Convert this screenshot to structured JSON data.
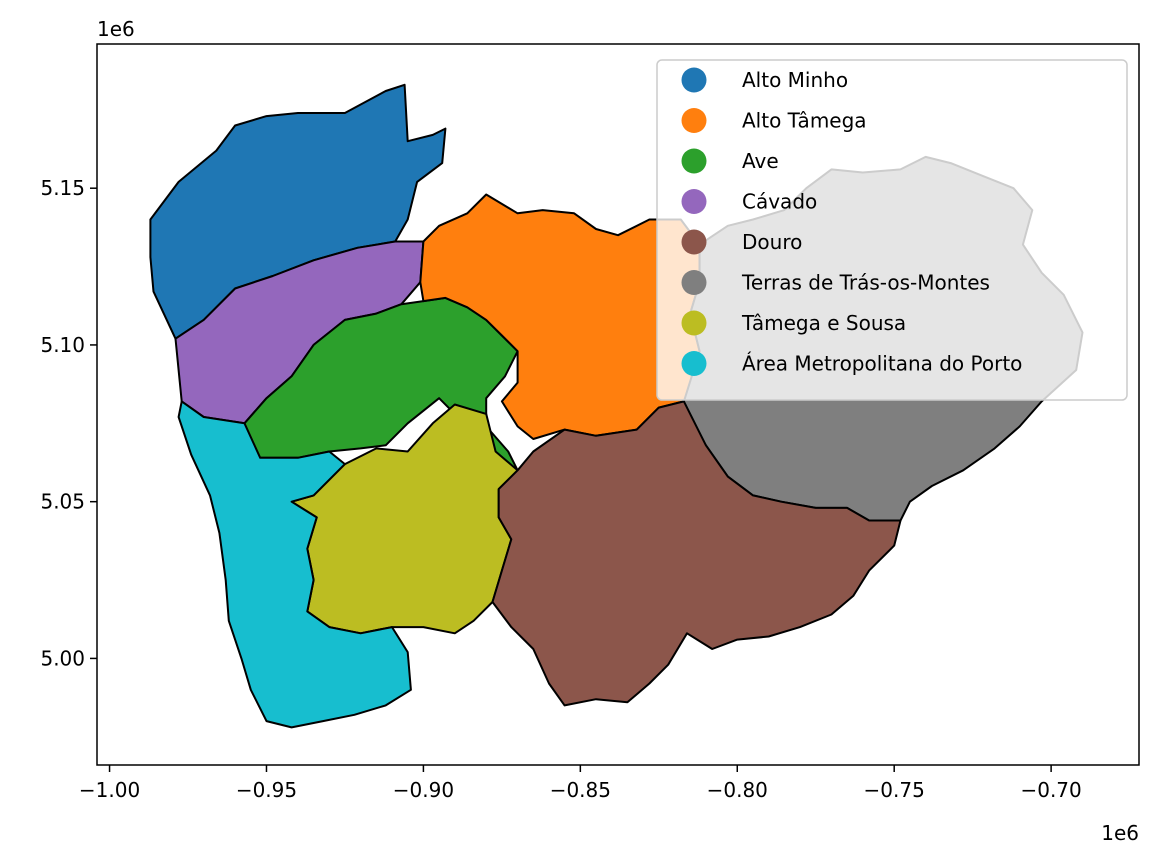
{
  "chart_data": {
    "type": "choropleth-map",
    "title": "",
    "xlabel": "",
    "ylabel": "",
    "x_multiplier": "1e6",
    "y_multiplier": "1e6",
    "xlim": [
      -1.004,
      -0.672
    ],
    "ylim": [
      4.966,
      5.196
    ],
    "x_ticks": [
      {
        "value": -1.0,
        "label": "−1.00"
      },
      {
        "value": -0.95,
        "label": "−0.95"
      },
      {
        "value": -0.9,
        "label": "−0.90"
      },
      {
        "value": -0.85,
        "label": "−0.85"
      },
      {
        "value": -0.8,
        "label": "−0.80"
      },
      {
        "value": -0.75,
        "label": "−0.75"
      },
      {
        "value": -0.7,
        "label": "−0.70"
      }
    ],
    "y_ticks": [
      {
        "value": 5.0,
        "label": "5.00"
      },
      {
        "value": 5.05,
        "label": "5.05"
      },
      {
        "value": 5.1,
        "label": "5.10"
      },
      {
        "value": 5.15,
        "label": "5.15"
      }
    ],
    "legend_position": "top-right",
    "legend": [
      {
        "label": "Alto Minho",
        "color": "#1f77b4"
      },
      {
        "label": "Alto Tâmega",
        "color": "#ff7f0e"
      },
      {
        "label": "Ave",
        "color": "#2ca02c"
      },
      {
        "label": "Cávado",
        "color": "#9467bd"
      },
      {
        "label": "Douro",
        "color": "#8c564b"
      },
      {
        "label": "Terras de Trás-os-Montes",
        "color": "#7f7f7f"
      },
      {
        "label": "Tâmega e Sousa",
        "color": "#bcbd22"
      },
      {
        "label": "Área Metropolitana do Porto",
        "color": "#17becf"
      }
    ],
    "regions": [
      {
        "name": "Alto Minho",
        "color": "#1f77b4",
        "outline": [
          [
            -0.987,
            5.14
          ],
          [
            -0.978,
            5.152
          ],
          [
            -0.966,
            5.162
          ],
          [
            -0.96,
            5.17
          ],
          [
            -0.95,
            5.173
          ],
          [
            -0.94,
            5.174
          ],
          [
            -0.925,
            5.174
          ],
          [
            -0.912,
            5.181
          ],
          [
            -0.906,
            5.183
          ],
          [
            -0.905,
            5.165
          ],
          [
            -0.897,
            5.167
          ],
          [
            -0.893,
            5.169
          ],
          [
            -0.894,
            5.158
          ],
          [
            -0.902,
            5.152
          ],
          [
            -0.905,
            5.14
          ],
          [
            -0.909,
            5.133
          ],
          [
            -0.921,
            5.131
          ],
          [
            -0.935,
            5.127
          ],
          [
            -0.948,
            5.122
          ],
          [
            -0.96,
            5.118
          ],
          [
            -0.97,
            5.108
          ],
          [
            -0.979,
            5.102
          ],
          [
            -0.986,
            5.117
          ],
          [
            -0.987,
            5.128
          ]
        ]
      },
      {
        "name": "Cávado",
        "color": "#9467bd",
        "outline": [
          [
            -0.979,
            5.102
          ],
          [
            -0.97,
            5.108
          ],
          [
            -0.96,
            5.118
          ],
          [
            -0.948,
            5.122
          ],
          [
            -0.935,
            5.127
          ],
          [
            -0.921,
            5.131
          ],
          [
            -0.909,
            5.133
          ],
          [
            -0.9,
            5.133
          ],
          [
            -0.901,
            5.12
          ],
          [
            -0.907,
            5.113
          ],
          [
            -0.915,
            5.11
          ],
          [
            -0.925,
            5.108
          ],
          [
            -0.935,
            5.1
          ],
          [
            -0.942,
            5.09
          ],
          [
            -0.95,
            5.083
          ],
          [
            -0.957,
            5.075
          ],
          [
            -0.97,
            5.077
          ],
          [
            -0.977,
            5.082
          ]
        ]
      },
      {
        "name": "Ave",
        "color": "#2ca02c",
        "outline": [
          [
            -0.957,
            5.075
          ],
          [
            -0.95,
            5.083
          ],
          [
            -0.942,
            5.09
          ],
          [
            -0.935,
            5.1
          ],
          [
            -0.925,
            5.108
          ],
          [
            -0.915,
            5.11
          ],
          [
            -0.907,
            5.113
          ],
          [
            -0.9,
            5.114
          ],
          [
            -0.893,
            5.115
          ],
          [
            -0.886,
            5.112
          ],
          [
            -0.88,
            5.108
          ],
          [
            -0.875,
            5.103
          ],
          [
            -0.87,
            5.098
          ],
          [
            -0.874,
            5.09
          ],
          [
            -0.88,
            5.083
          ],
          [
            -0.88,
            5.074
          ],
          [
            -0.873,
            5.066
          ],
          [
            -0.87,
            5.06
          ],
          [
            -0.876,
            5.057
          ],
          [
            -0.88,
            5.062
          ],
          [
            -0.885,
            5.068
          ],
          [
            -0.89,
            5.078
          ],
          [
            -0.895,
            5.083
          ],
          [
            -0.905,
            5.075
          ],
          [
            -0.912,
            5.068
          ],
          [
            -0.92,
            5.067
          ],
          [
            -0.93,
            5.066
          ],
          [
            -0.94,
            5.064
          ],
          [
            -0.952,
            5.064
          ],
          [
            -0.958,
            5.07
          ]
        ]
      },
      {
        "name": "Alto Tâmega",
        "color": "#ff7f0e",
        "outline": [
          [
            -0.9,
            5.133
          ],
          [
            -0.895,
            5.138
          ],
          [
            -0.886,
            5.142
          ],
          [
            -0.88,
            5.148
          ],
          [
            -0.87,
            5.142
          ],
          [
            -0.862,
            5.143
          ],
          [
            -0.852,
            5.142
          ],
          [
            -0.845,
            5.137
          ],
          [
            -0.838,
            5.135
          ],
          [
            -0.828,
            5.14
          ],
          [
            -0.818,
            5.14
          ],
          [
            -0.812,
            5.132
          ],
          [
            -0.812,
            5.12
          ],
          [
            -0.815,
            5.11
          ],
          [
            -0.812,
            5.098
          ],
          [
            -0.812,
            5.082
          ],
          [
            -0.817,
            5.082
          ],
          [
            -0.825,
            5.08
          ],
          [
            -0.832,
            5.073
          ],
          [
            -0.845,
            5.071
          ],
          [
            -0.855,
            5.073
          ],
          [
            -0.865,
            5.07
          ],
          [
            -0.87,
            5.074
          ],
          [
            -0.875,
            5.082
          ],
          [
            -0.87,
            5.088
          ],
          [
            -0.87,
            5.098
          ],
          [
            -0.875,
            5.103
          ],
          [
            -0.88,
            5.108
          ],
          [
            -0.886,
            5.112
          ],
          [
            -0.893,
            5.115
          ],
          [
            -0.9,
            5.114
          ],
          [
            -0.901,
            5.12
          ]
        ]
      },
      {
        "name": "Terras de Trás-os-Montes",
        "color": "#7f7f7f",
        "outline": [
          [
            -0.817,
            5.082
          ],
          [
            -0.812,
            5.098
          ],
          [
            -0.815,
            5.11
          ],
          [
            -0.812,
            5.12
          ],
          [
            -0.812,
            5.132
          ],
          [
            -0.803,
            5.138
          ],
          [
            -0.795,
            5.14
          ],
          [
            -0.785,
            5.143
          ],
          [
            -0.778,
            5.15
          ],
          [
            -0.77,
            5.156
          ],
          [
            -0.76,
            5.155
          ],
          [
            -0.748,
            5.156
          ],
          [
            -0.74,
            5.16
          ],
          [
            -0.732,
            5.158
          ],
          [
            -0.722,
            5.154
          ],
          [
            -0.712,
            5.15
          ],
          [
            -0.706,
            5.143
          ],
          [
            -0.709,
            5.132
          ],
          [
            -0.703,
            5.123
          ],
          [
            -0.696,
            5.116
          ],
          [
            -0.69,
            5.104
          ],
          [
            -0.692,
            5.092
          ],
          [
            -0.703,
            5.082
          ],
          [
            -0.71,
            5.074
          ],
          [
            -0.718,
            5.067
          ],
          [
            -0.728,
            5.06
          ],
          [
            -0.738,
            5.055
          ],
          [
            -0.745,
            5.05
          ],
          [
            -0.748,
            5.044
          ],
          [
            -0.758,
            5.044
          ],
          [
            -0.765,
            5.048
          ],
          [
            -0.775,
            5.048
          ],
          [
            -0.786,
            5.05
          ],
          [
            -0.795,
            5.052
          ],
          [
            -0.803,
            5.058
          ],
          [
            -0.81,
            5.068
          ],
          [
            -0.815,
            5.075
          ]
        ]
      },
      {
        "name": "Tâmega e Sousa",
        "color": "#bcbd22",
        "outline": [
          [
            -0.935,
            5.052
          ],
          [
            -0.925,
            5.062
          ],
          [
            -0.915,
            5.067
          ],
          [
            -0.905,
            5.066
          ],
          [
            -0.897,
            5.075
          ],
          [
            -0.89,
            5.081
          ],
          [
            -0.88,
            5.078
          ],
          [
            -0.877,
            5.066
          ],
          [
            -0.87,
            5.06
          ],
          [
            -0.876,
            5.054
          ],
          [
            -0.876,
            5.045
          ],
          [
            -0.872,
            5.038
          ],
          [
            -0.875,
            5.028
          ],
          [
            -0.878,
            5.018
          ],
          [
            -0.884,
            5.012
          ],
          [
            -0.89,
            5.008
          ],
          [
            -0.9,
            5.01
          ],
          [
            -0.91,
            5.01
          ],
          [
            -0.92,
            5.008
          ],
          [
            -0.93,
            5.01
          ],
          [
            -0.937,
            5.015
          ],
          [
            -0.935,
            5.025
          ],
          [
            -0.937,
            5.035
          ],
          [
            -0.934,
            5.045
          ],
          [
            -0.942,
            5.05
          ]
        ]
      },
      {
        "name": "Douro",
        "color": "#8c564b",
        "outline": [
          [
            -0.876,
            5.054
          ],
          [
            -0.87,
            5.06
          ],
          [
            -0.865,
            5.066
          ],
          [
            -0.855,
            5.073
          ],
          [
            -0.845,
            5.071
          ],
          [
            -0.832,
            5.073
          ],
          [
            -0.825,
            5.08
          ],
          [
            -0.817,
            5.082
          ],
          [
            -0.81,
            5.068
          ],
          [
            -0.803,
            5.058
          ],
          [
            -0.795,
            5.052
          ],
          [
            -0.786,
            5.05
          ],
          [
            -0.775,
            5.048
          ],
          [
            -0.765,
            5.048
          ],
          [
            -0.758,
            5.044
          ],
          [
            -0.748,
            5.044
          ],
          [
            -0.75,
            5.036
          ],
          [
            -0.758,
            5.028
          ],
          [
            -0.763,
            5.02
          ],
          [
            -0.77,
            5.014
          ],
          [
            -0.78,
            5.01
          ],
          [
            -0.79,
            5.007
          ],
          [
            -0.8,
            5.006
          ],
          [
            -0.808,
            5.003
          ],
          [
            -0.816,
            5.008
          ],
          [
            -0.822,
            4.998
          ],
          [
            -0.828,
            4.992
          ],
          [
            -0.835,
            4.986
          ],
          [
            -0.845,
            4.987
          ],
          [
            -0.855,
            4.985
          ],
          [
            -0.86,
            4.992
          ],
          [
            -0.865,
            5.003
          ],
          [
            -0.872,
            5.01
          ],
          [
            -0.878,
            5.018
          ],
          [
            -0.875,
            5.028
          ],
          [
            -0.872,
            5.038
          ],
          [
            -0.876,
            5.045
          ]
        ]
      },
      {
        "name": "Área Metropolitana do Porto",
        "color": "#17becf",
        "outline": [
          [
            -0.977,
            5.082
          ],
          [
            -0.97,
            5.077
          ],
          [
            -0.957,
            5.075
          ],
          [
            -0.952,
            5.064
          ],
          [
            -0.94,
            5.064
          ],
          [
            -0.93,
            5.066
          ],
          [
            -0.925,
            5.062
          ],
          [
            -0.935,
            5.052
          ],
          [
            -0.942,
            5.05
          ],
          [
            -0.934,
            5.045
          ],
          [
            -0.937,
            5.035
          ],
          [
            -0.935,
            5.025
          ],
          [
            -0.937,
            5.015
          ],
          [
            -0.93,
            5.01
          ],
          [
            -0.92,
            5.008
          ],
          [
            -0.91,
            5.01
          ],
          [
            -0.905,
            5.002
          ],
          [
            -0.904,
            4.99
          ],
          [
            -0.912,
            4.985
          ],
          [
            -0.922,
            4.982
          ],
          [
            -0.932,
            4.98
          ],
          [
            -0.942,
            4.978
          ],
          [
            -0.95,
            4.98
          ],
          [
            -0.955,
            4.99
          ],
          [
            -0.958,
            5.0
          ],
          [
            -0.962,
            5.012
          ],
          [
            -0.963,
            5.025
          ],
          [
            -0.965,
            5.04
          ],
          [
            -0.968,
            5.052
          ],
          [
            -0.974,
            5.065
          ],
          [
            -0.978,
            5.077
          ]
        ]
      }
    ]
  }
}
